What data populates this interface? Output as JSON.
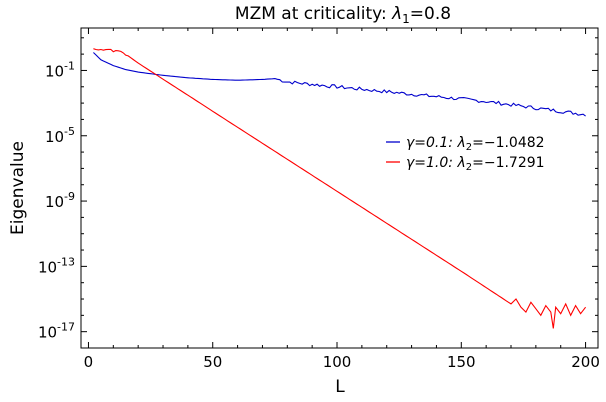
{
  "chart_data": {
    "type": "line",
    "title": "MZM at criticality: λ₁=0.8",
    "title_parts": {
      "prefix": "MZM at criticality: ",
      "lambda": "λ",
      "sub": "1",
      "suffix": "=0.8"
    },
    "xlabel": "L",
    "ylabel": "Eigenvalue",
    "xlim": [
      -3,
      205
    ],
    "ylim_log10": [
      -18,
      1.6
    ],
    "y_scale": "log",
    "x_ticks": [
      0,
      50,
      100,
      150,
      200
    ],
    "y_ticks": [
      {
        "exp": -1,
        "base": "10",
        "sup": "-1"
      },
      {
        "exp": -5,
        "base": "10",
        "sup": "-5"
      },
      {
        "exp": -9,
        "base": "10",
        "sup": "-9"
      },
      {
        "exp": -13,
        "base": "10",
        "sup": "-13"
      },
      {
        "exp": -17,
        "base": "10",
        "sup": "-17"
      }
    ],
    "legend_position": "center-right",
    "series": [
      {
        "name": "γ=0.1: λ₂=−1.0482",
        "legend_parts": {
          "gamma_part": "γ=0.1: λ",
          "sub": "2",
          "value": "=−1.0482"
        },
        "color": "#0000cc",
        "x": [
          2,
          5,
          10,
          15,
          20,
          30,
          40,
          50,
          60,
          70,
          75,
          80,
          90,
          100,
          120,
          140,
          160,
          180,
          200
        ],
        "log10": [
          0.1,
          -0.35,
          -0.7,
          -0.95,
          -1.1,
          -1.3,
          -1.45,
          -1.55,
          -1.6,
          -1.55,
          -1.5,
          -1.7,
          -1.85,
          -2.0,
          -2.3,
          -2.6,
          -2.9,
          -3.3,
          -3.7
        ]
      },
      {
        "name": "γ=1.0: λ₂=−1.7291",
        "legend_parts": {
          "gamma_part": "γ=1.0: λ",
          "sub": "2",
          "value": "=−1.7291"
        },
        "color": "#ff0000",
        "x": [
          2,
          5,
          8,
          10,
          12,
          15,
          20,
          50,
          100,
          150,
          170
        ],
        "log10": [
          0.35,
          0.25,
          0.35,
          0.2,
          0.25,
          0.0,
          -0.55,
          -3.5,
          -8.4,
          -13.3,
          -15.3
        ],
        "noise_tail": {
          "x": [
            172,
            174,
            176,
            178,
            180,
            182,
            184,
            186,
            187,
            188,
            190,
            192,
            194,
            196,
            198,
            200
          ],
          "log10": [
            -15.0,
            -15.5,
            -15.8,
            -15.2,
            -15.6,
            -16.0,
            -15.4,
            -15.8,
            -16.8,
            -15.5,
            -15.9,
            -15.3,
            -16.0,
            -15.4,
            -15.9,
            -15.5
          ]
        }
      }
    ]
  }
}
